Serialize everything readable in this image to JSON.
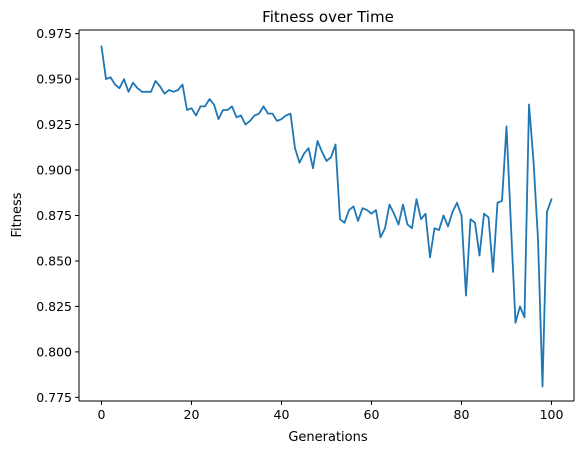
{
  "chart_data": {
    "type": "line",
    "title": "Fitness over Time",
    "xlabel": "Generations",
    "ylabel": "Fitness",
    "xlim": [
      -5,
      105
    ],
    "ylim": [
      0.773,
      0.977
    ],
    "xticks": [
      0,
      20,
      40,
      60,
      80,
      100
    ],
    "yticks": [
      0.775,
      0.8,
      0.825,
      0.85,
      0.875,
      0.9,
      0.925,
      0.95,
      0.975
    ],
    "ytick_labels": [
      "0.775",
      "0.800",
      "0.825",
      "0.850",
      "0.875",
      "0.900",
      "0.925",
      "0.950",
      "0.975"
    ],
    "grid": false,
    "legend": "none",
    "line_color": "#1f77b4",
    "x": [
      0,
      1,
      2,
      3,
      4,
      5,
      6,
      7,
      8,
      9,
      10,
      11,
      12,
      13,
      14,
      15,
      16,
      17,
      18,
      19,
      20,
      21,
      22,
      23,
      24,
      25,
      26,
      27,
      28,
      29,
      30,
      31,
      32,
      33,
      34,
      35,
      36,
      37,
      38,
      39,
      40,
      41,
      42,
      43,
      44,
      45,
      46,
      47,
      48,
      49,
      50,
      51,
      52,
      53,
      54,
      55,
      56,
      57,
      58,
      59,
      60,
      61,
      62,
      63,
      64,
      65,
      66,
      67,
      68,
      69,
      70,
      71,
      72,
      73,
      74,
      75,
      76,
      77,
      78,
      79,
      80,
      81,
      82,
      83,
      84,
      85,
      86,
      87,
      88,
      89,
      90,
      91,
      92,
      93,
      94,
      95,
      96,
      97,
      98,
      99,
      100
    ],
    "series": [
      {
        "values": [
          0.968,
          0.95,
          0.951,
          0.947,
          0.945,
          0.95,
          0.943,
          0.948,
          0.945,
          0.943,
          0.943,
          0.943,
          0.949,
          0.946,
          0.942,
          0.944,
          0.943,
          0.944,
          0.947,
          0.933,
          0.934,
          0.93,
          0.935,
          0.935,
          0.939,
          0.936,
          0.928,
          0.933,
          0.933,
          0.935,
          0.929,
          0.93,
          0.925,
          0.927,
          0.93,
          0.931,
          0.935,
          0.931,
          0.931,
          0.927,
          0.928,
          0.93,
          0.931,
          0.912,
          0.904,
          0.909,
          0.912,
          0.901,
          0.916,
          0.91,
          0.905,
          0.907,
          0.914,
          0.873,
          0.871,
          0.878,
          0.88,
          0.872,
          0.879,
          0.878,
          0.876,
          0.878,
          0.863,
          0.868,
          0.881,
          0.876,
          0.87,
          0.881,
          0.87,
          0.868,
          0.884,
          0.873,
          0.876,
          0.852,
          0.868,
          0.867,
          0.875,
          0.869,
          0.877,
          0.882,
          0.875,
          0.831,
          0.873,
          0.871,
          0.853,
          0.876,
          0.874,
          0.844,
          0.882,
          0.883,
          0.924,
          0.869,
          0.816,
          0.825,
          0.819,
          0.936,
          0.905,
          0.862,
          0.781,
          0.877,
          0.884
        ]
      }
    ]
  }
}
